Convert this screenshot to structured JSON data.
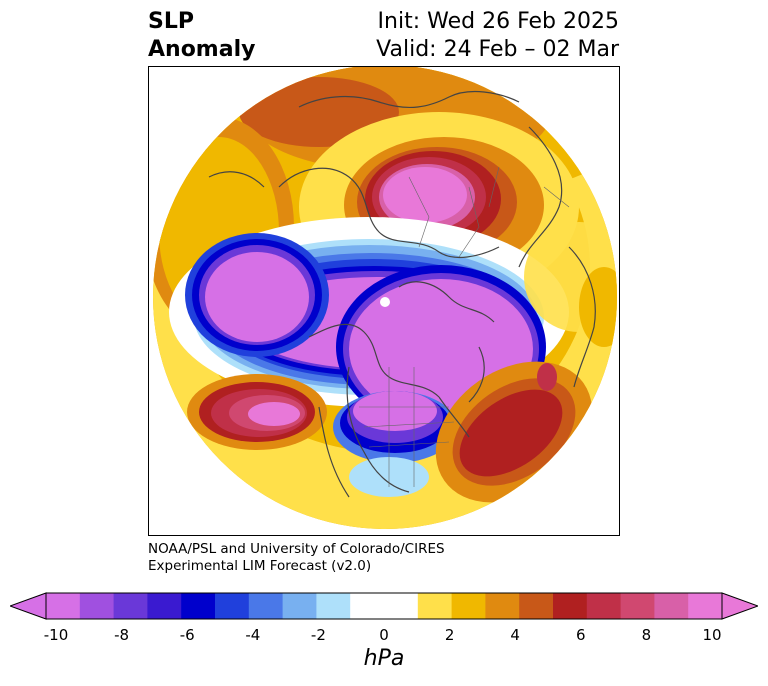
{
  "title": {
    "left_line1": "SLP",
    "left_line2": "Anomaly",
    "right_line1": "Init: Wed 26 Feb 2025",
    "right_line2": "Valid: 24 Feb – 02 Mar"
  },
  "credit": {
    "line1": "NOAA/PSL and University of Colorado/CIRES",
    "line2": "Experimental LIM Forecast (v2.0)"
  },
  "colorbar": {
    "unit": "hPa",
    "ticks": [
      "-10",
      "-8",
      "-6",
      "-4",
      "-2",
      "0",
      "2",
      "4",
      "6",
      "8",
      "10"
    ],
    "colors": [
      "#d670e6",
      "#a050e0",
      "#6a38d8",
      "#3a1ad0",
      "#0000cc",
      "#2040dc",
      "#4a78e8",
      "#78b0f0",
      "#aee0fa",
      "#ffffff",
      "#ffffff",
      "#ffe04a",
      "#f0b800",
      "#e08a10",
      "#c85818",
      "#b02020",
      "#c03048",
      "#d04870",
      "#d860a8",
      "#e878d8"
    ],
    "min_arrow": "#d670e6",
    "max_arrow": "#e878d8"
  }
}
